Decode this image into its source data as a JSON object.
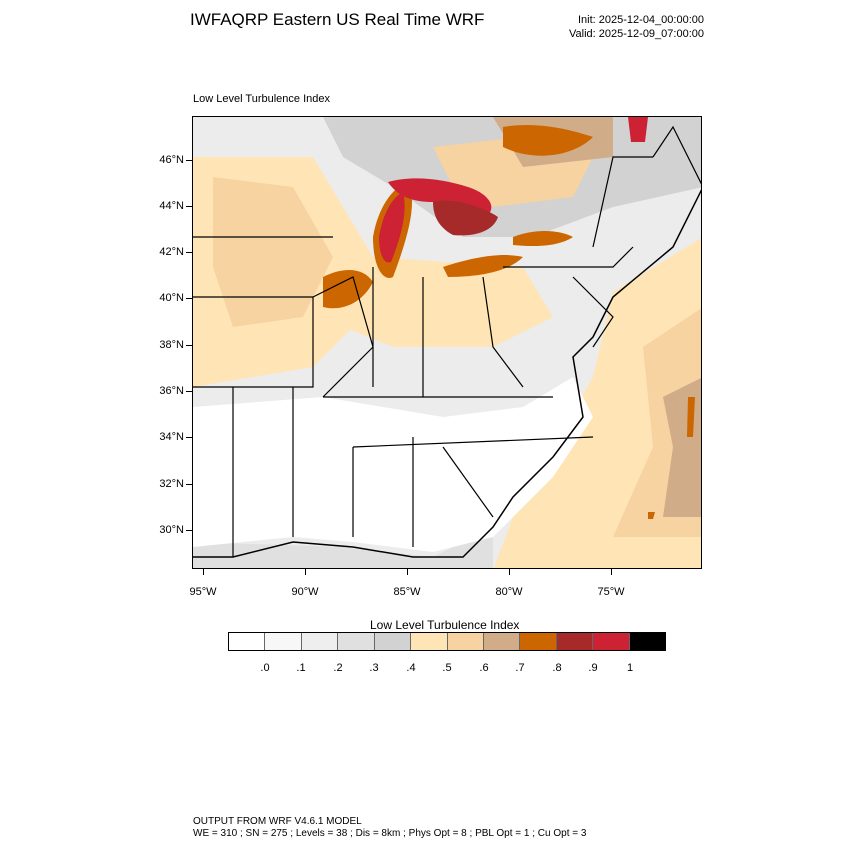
{
  "header": {
    "title": "IWFAQRP Eastern US Real Time WRF",
    "init": "Init: 2025-12-04_00:00:00",
    "valid": "Valid: 2025-12-09_07:00:00"
  },
  "map": {
    "subtitle": "Low Level Turbulence Index",
    "lat_labels": [
      "46°N",
      "44°N",
      "42°N",
      "40°N",
      "38°N",
      "36°N",
      "34°N",
      "32°N",
      "30°N"
    ],
    "lon_labels": [
      "95°W",
      "90°W",
      "85°W",
      "80°W",
      "75°W"
    ]
  },
  "colorbar": {
    "title": "Low Level Turbulence Index",
    "colors": [
      "#ffffff",
      "#f7f7f7",
      "#eeeeee",
      "#e0e0e0",
      "#d2d2d2",
      "#ffe5b5",
      "#f6d3a0",
      "#d0ad88",
      "#cc6600",
      "#a62a2a",
      "#cc2233",
      "#000000"
    ],
    "labels": [
      ".0",
      ".1",
      ".2",
      ".3",
      ".4",
      ".5",
      ".6",
      ".7",
      ".8",
      ".9",
      "1"
    ]
  },
  "footer": {
    "line1": "OUTPUT FROM WRF V4.6.1 MODEL",
    "line2": "WE = 310 ; SN = 275 ; Levels = 38 ; Dis = 8km ; Phys Opt = 8 ; PBL Opt = 1 ; Cu Opt = 3"
  }
}
